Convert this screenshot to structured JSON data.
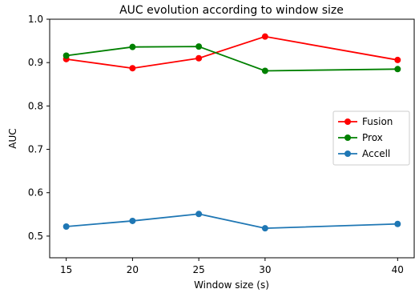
{
  "chart_data": {
    "type": "line",
    "title": "AUC evolution according to window size",
    "xlabel": "Window size (s)",
    "ylabel": "AUC",
    "x": [
      15,
      20,
      25,
      30,
      40
    ],
    "xticks": [
      "15",
      "20",
      "25",
      "30",
      "40"
    ],
    "xlim": [
      13.75,
      41.25
    ],
    "ylim": [
      0.45,
      1.0
    ],
    "yticks": [
      "0.5",
      "0.6",
      "0.7",
      "0.8",
      "0.9",
      "1.0"
    ],
    "ytick_values": [
      0.5,
      0.6,
      0.7,
      0.8,
      0.9,
      1.0
    ],
    "grid": false,
    "legend_position": "center-right",
    "series": [
      {
        "name": "Fusion",
        "color": "#ff0000",
        "values": [
          0.908,
          0.887,
          0.91,
          0.96,
          0.906
        ]
      },
      {
        "name": "Prox",
        "color": "#008000",
        "values": [
          0.916,
          0.936,
          0.937,
          0.881,
          0.885
        ]
      },
      {
        "name": "Accell",
        "color": "#1f77b4",
        "values": [
          0.522,
          0.535,
          0.551,
          0.518,
          0.528
        ]
      }
    ]
  }
}
